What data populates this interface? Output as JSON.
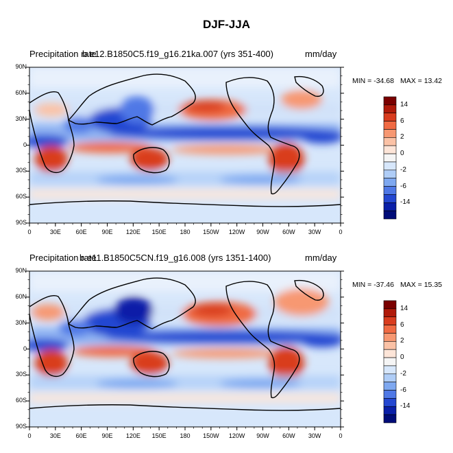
{
  "figure": {
    "title": "DJF-JJA",
    "units": "mm/day"
  },
  "colorbar": {
    "labels": [
      "14",
      "6",
      "2",
      "0",
      "-2",
      "-6",
      "-14"
    ],
    "colors": [
      "#7a0000",
      "#b01a0a",
      "#d93c1e",
      "#f06a43",
      "#f79872",
      "#fbc2a6",
      "#fde5d8",
      "#f5f5f5",
      "#d7e7fb",
      "#afcdf7",
      "#7ea8f0",
      "#4f78e6",
      "#2447d1",
      "#0a1fa8",
      "#000c78"
    ]
  },
  "chart_data": [
    {
      "type": "heatmap",
      "left_title": "Precipitation rate",
      "center_title": "b.e12.B1850C5.f19_g16.21ka.007 (yrs 351-400)",
      "right_title": "mm/day",
      "min_label": "MIN = -34.68",
      "max_label": "MAX =  13.42",
      "min": -34.68,
      "max": 13.42,
      "xlim": [
        0,
        360
      ],
      "ylim": [
        -90,
        90
      ],
      "x_tick_labels": [
        "0",
        "30E",
        "60E",
        "90E",
        "120E",
        "150E",
        "180",
        "150W",
        "120W",
        "90W",
        "60W",
        "30W",
        "0"
      ],
      "y_tick_labels": [
        "90N",
        "60N",
        "30N",
        "0",
        "30S",
        "60S",
        "90S"
      ],
      "contour_levels": [
        -14,
        -10,
        -6,
        -4,
        -2,
        -1,
        0,
        1,
        2,
        4,
        6,
        10,
        14
      ]
    },
    {
      "type": "heatmap",
      "left_title": "Precipitation rate",
      "center_title": "b.e11.B1850C5CN.f19_g16.008 (yrs 1351-1400)",
      "right_title": "mm/day",
      "min_label": "MIN = -37.46",
      "max_label": "MAX =  15.35",
      "min": -37.46,
      "max": 15.35,
      "xlim": [
        0,
        360
      ],
      "ylim": [
        -90,
        90
      ],
      "x_tick_labels": [
        "0",
        "30E",
        "60E",
        "90E",
        "120E",
        "150E",
        "180",
        "150W",
        "120W",
        "90W",
        "60W",
        "30W",
        "0"
      ],
      "y_tick_labels": [
        "90N",
        "60N",
        "30N",
        "0",
        "30S",
        "60S",
        "90S"
      ],
      "contour_levels": [
        -14,
        -10,
        -6,
        -4,
        -2,
        -1,
        0,
        1,
        2,
        4,
        6,
        10,
        14
      ]
    }
  ]
}
